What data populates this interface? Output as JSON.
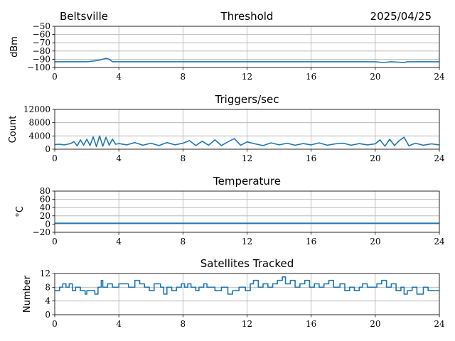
{
  "header": {
    "location": "Beltsville",
    "date": "2025/04/25"
  },
  "colors": {
    "series": "#1f77b4"
  },
  "chart_data": [
    {
      "type": "line",
      "title": "Threshold",
      "ylabel": "dBm",
      "xlabel": "",
      "xlim": [
        0,
        24
      ],
      "ylim": [
        -100,
        -50
      ],
      "x_ticks": [
        0,
        4,
        8,
        12,
        16,
        20,
        24
      ],
      "y_ticks": [
        -100,
        -90,
        -80,
        -70,
        -60,
        -50
      ],
      "y_tick_labels": [
        "−100",
        "−90",
        "−80",
        "−70",
        "−60",
        "−50"
      ],
      "grid": true,
      "series": [
        {
          "x": [
            0,
            1,
            2,
            2.5,
            2.8,
            3.0,
            3.2,
            3.4,
            3.6,
            4,
            6,
            8,
            10,
            12,
            14,
            16,
            18,
            20,
            20.5,
            21,
            21.8,
            22,
            24
          ],
          "y": [
            -93,
            -93,
            -93,
            -92,
            -91,
            -90,
            -89,
            -90,
            -93,
            -93,
            -93,
            -93,
            -93,
            -93,
            -93,
            -93,
            -93,
            -93,
            -94,
            -93,
            -94,
            -93,
            -93
          ]
        }
      ]
    },
    {
      "type": "line",
      "title": "Triggers/sec",
      "ylabel": "Count",
      "xlabel": "",
      "xlim": [
        0,
        24
      ],
      "ylim": [
        0,
        12000
      ],
      "x_ticks": [
        0,
        4,
        8,
        12,
        16,
        20,
        24
      ],
      "y_ticks": [
        0,
        4000,
        8000,
        12000
      ],
      "y_tick_labels": [
        "0",
        "4000",
        "8000",
        "12000"
      ],
      "grid": true,
      "series": [
        {
          "x": [
            0,
            0.3,
            0.6,
            1.0,
            1.2,
            1.4,
            1.6,
            1.8,
            2.0,
            2.2,
            2.4,
            2.6,
            2.8,
            3.0,
            3.2,
            3.4,
            3.6,
            3.8,
            4.0,
            4.5,
            5.0,
            5.5,
            6.0,
            6.5,
            7.0,
            7.5,
            8.0,
            8.4,
            8.8,
            9.2,
            9.6,
            10.0,
            10.4,
            10.8,
            11.2,
            11.6,
            12.0,
            12.5,
            13.0,
            13.5,
            14.0,
            14.5,
            15.0,
            15.5,
            16.0,
            16.5,
            17.0,
            17.5,
            18.0,
            18.5,
            19.0,
            19.5,
            20.0,
            20.3,
            20.6,
            20.9,
            21.2,
            21.5,
            21.8,
            22.1,
            22.5,
            23.0,
            23.5,
            24.0
          ],
          "y": [
            1400,
            1500,
            1300,
            1700,
            2300,
            1000,
            2800,
            1200,
            3000,
            1100,
            3700,
            800,
            4000,
            900,
            3600,
            1200,
            3000,
            1500,
            1700,
            1300,
            2000,
            1200,
            1800,
            1100,
            2000,
            1300,
            1800,
            2600,
            1100,
            2400,
            1200,
            2800,
            1100,
            2200,
            3200,
            1200,
            2200,
            1600,
            1100,
            1900,
            1300,
            1800,
            1200,
            1700,
            1300,
            1900,
            1200,
            1600,
            1800,
            1200,
            1700,
            1300,
            1600,
            2800,
            900,
            3000,
            1100,
            2600,
            3600,
            1000,
            1800,
            1200,
            1600,
            1300
          ]
        }
      ]
    },
    {
      "type": "line",
      "title": "Temperature",
      "ylabel": "°C",
      "xlabel": "",
      "xlim": [
        0,
        24
      ],
      "ylim": [
        -20,
        80
      ],
      "x_ticks": [
        0,
        4,
        8,
        12,
        16,
        20,
        24
      ],
      "y_ticks": [
        -20,
        0,
        20,
        40,
        60,
        80
      ],
      "y_tick_labels": [
        "−20",
        "0",
        "20",
        "40",
        "60",
        "80"
      ],
      "grid": true,
      "series": [
        {
          "x": [
            0,
            24
          ],
          "y": [
            2,
            2
          ]
        }
      ]
    },
    {
      "type": "line",
      "title": "Satellites Tracked",
      "ylabel": "Number",
      "xlabel": "",
      "xlim": [
        0,
        24
      ],
      "ylim": [
        0,
        12
      ],
      "x_ticks": [
        0,
        4,
        8,
        12,
        16,
        20,
        24
      ],
      "y_ticks": [
        0,
        4,
        8,
        12
      ],
      "y_tick_labels": [
        "0",
        "4",
        "8",
        "12"
      ],
      "grid": true,
      "series": [
        {
          "step": true,
          "x": [
            0,
            0.3,
            0.5,
            0.7,
            0.9,
            1.1,
            1.3,
            1.6,
            1.9,
            2.0,
            2.5,
            2.7,
            2.9,
            3.0,
            3.3,
            3.6,
            4.0,
            4.6,
            5.0,
            5.3,
            5.6,
            5.9,
            6.2,
            6.6,
            6.8,
            7.0,
            7.3,
            7.6,
            7.9,
            8.1,
            8.3,
            8.5,
            8.8,
            9.0,
            9.3,
            9.5,
            9.8,
            10.0,
            10.4,
            10.8,
            11.1,
            11.5,
            11.9,
            12.2,
            12.4,
            12.7,
            13.0,
            13.3,
            13.6,
            13.9,
            14.2,
            14.4,
            14.7,
            15.0,
            15.3,
            15.6,
            15.9,
            16.2,
            16.5,
            16.8,
            17.1,
            17.4,
            17.8,
            18.1,
            18.4,
            18.7,
            19.0,
            19.2,
            19.5,
            19.8,
            20.1,
            20.4,
            20.7,
            21.0,
            21.3,
            21.6,
            21.8,
            22.0,
            22.3,
            22.6,
            23.0,
            23.3,
            24.0
          ],
          "y": [
            7,
            8,
            9,
            8,
            9,
            7,
            8,
            7,
            6,
            7,
            6,
            8,
            10,
            8,
            9,
            8,
            9,
            8,
            10,
            9,
            8,
            7,
            9,
            8,
            6,
            8,
            7,
            8,
            9,
            8,
            9,
            8,
            7,
            8,
            9,
            8,
            8,
            7,
            8,
            6,
            7,
            8,
            7,
            9,
            10,
            8,
            9,
            8,
            9,
            10,
            11,
            9,
            10,
            8,
            9,
            10,
            8,
            9,
            8,
            9,
            10,
            8,
            9,
            7,
            8,
            7,
            8,
            9,
            8,
            8,
            9,
            10,
            8,
            9,
            7,
            8,
            6,
            7,
            8,
            6,
            8,
            7,
            7
          ]
        }
      ]
    }
  ]
}
